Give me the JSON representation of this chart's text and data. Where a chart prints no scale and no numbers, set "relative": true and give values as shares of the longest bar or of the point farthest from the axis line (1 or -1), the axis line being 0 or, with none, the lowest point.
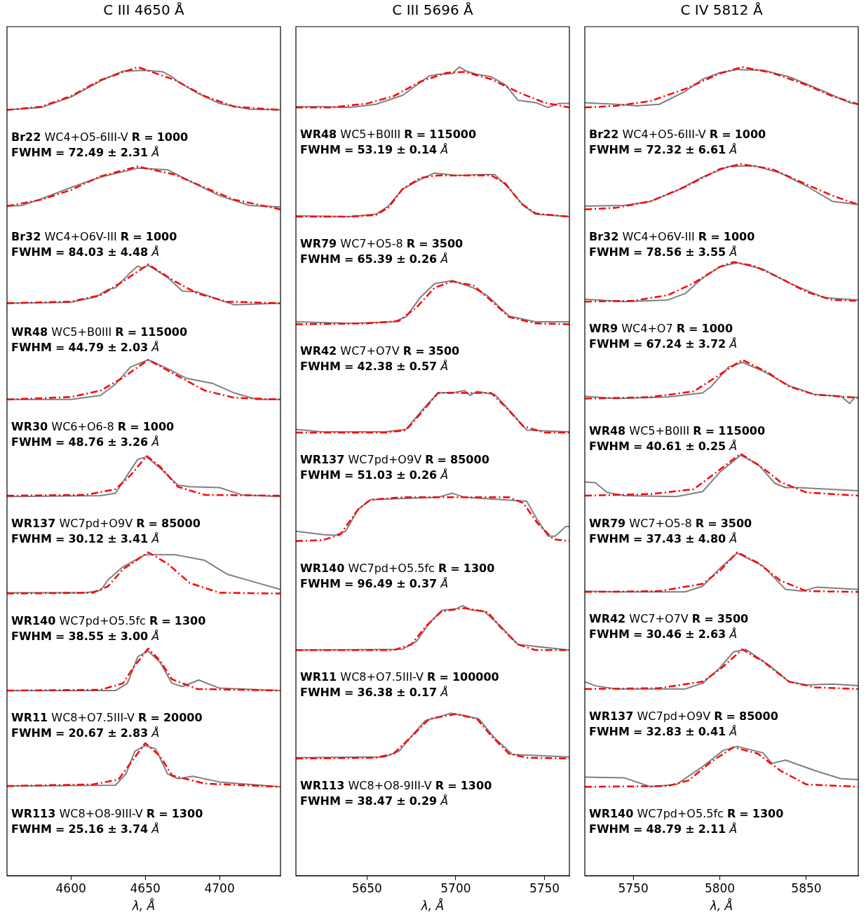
{
  "chart_data": [
    {
      "type": "line",
      "title": "C III 4650 Å",
      "xlabel": "λ, Å",
      "relative": true,
      "xlim": [
        4557,
        4741
      ],
      "xticks": [
        4600,
        4650,
        4700
      ],
      "tick_labels": "x",
      "grid": false,
      "legend": false,
      "marker": "none",
      "series": [
        {
          "color": "#808080",
          "line_style": "solid",
          "x": [
            4557,
            4580,
            4600,
            4620,
            4635,
            4650,
            4662,
            4668,
            4672,
            4685,
            4700,
            4720,
            4741
          ],
          "values": [
            0.947,
            0.95,
            0.963,
            0.983,
            0.995,
            0.996,
            0.994,
            0.988,
            0.982,
            0.968,
            0.955,
            0.948,
            0.947
          ]
        },
        {
          "color": "#ff0000",
          "line_style": "dashed",
          "x": [
            4557,
            4580,
            4600,
            4620,
            4645,
            4670,
            4690,
            4710,
            4741
          ],
          "values": [
            0.947,
            0.951,
            0.964,
            0.984,
            1.0,
            0.984,
            0.964,
            0.951,
            0.947
          ]
        },
        {
          "color": "#808080",
          "line_style": "solid",
          "x": [
            4557,
            4567,
            4580,
            4600,
            4620,
            4645,
            4665,
            4680,
            4700,
            4720,
            4741
          ],
          "values": [
            0.828,
            0.829,
            0.837,
            0.851,
            0.864,
            0.875,
            0.873,
            0.859,
            0.841,
            0.829,
            0.827
          ]
        },
        {
          "color": "#ff0000",
          "line_style": "dashed",
          "x": [
            4557,
            4580,
            4600,
            4620,
            4645,
            4670,
            4690,
            4710,
            4741
          ],
          "values": [
            0.828,
            0.836,
            0.848,
            0.865,
            0.877,
            0.867,
            0.851,
            0.836,
            0.824
          ]
        },
        {
          "color": "#808080",
          "line_style": "solid",
          "x": [
            4557,
            4600,
            4617,
            4625,
            4630,
            4640,
            4645,
            4648,
            4652,
            4665,
            4675,
            4685,
            4700,
            4710,
            4741
          ],
          "values": [
            0.708,
            0.709,
            0.716,
            0.725,
            0.727,
            0.746,
            0.754,
            0.751,
            0.755,
            0.74,
            0.723,
            0.722,
            0.712,
            0.706,
            0.708
          ]
        },
        {
          "color": "#ff0000",
          "line_style": "dashed",
          "x": [
            4557,
            4600,
            4620,
            4635,
            4652,
            4670,
            4685,
            4705,
            4741
          ],
          "values": [
            0.708,
            0.71,
            0.718,
            0.735,
            0.756,
            0.735,
            0.72,
            0.71,
            0.708
          ]
        },
        {
          "color": "#808080",
          "line_style": "solid",
          "x": [
            4557,
            4600,
            4620,
            4630,
            4640,
            4652,
            4665,
            4678,
            4695,
            4710,
            4725,
            4741
          ],
          "values": [
            0.589,
            0.589,
            0.594,
            0.608,
            0.629,
            0.638,
            0.627,
            0.615,
            0.609,
            0.597,
            0.589,
            0.589
          ]
        },
        {
          "color": "#ff0000",
          "line_style": "dashed",
          "x": [
            4557,
            4600,
            4620,
            4635,
            4652,
            4670,
            4690,
            4710,
            4741
          ],
          "values": [
            0.589,
            0.592,
            0.6,
            0.616,
            0.638,
            0.62,
            0.6,
            0.591,
            0.589
          ]
        },
        {
          "color": "#808080",
          "line_style": "solid",
          "x": [
            4557,
            4620,
            4630,
            4636,
            4645,
            4651,
            4660,
            4672,
            4680,
            4700,
            4715,
            4741
          ],
          "values": [
            0.469,
            0.47,
            0.473,
            0.49,
            0.515,
            0.518,
            0.504,
            0.483,
            0.481,
            0.48,
            0.471,
            0.469
          ]
        },
        {
          "color": "#ff0000",
          "line_style": "dashed",
          "x": [
            4557,
            4610,
            4630,
            4640,
            4651,
            4660,
            4672,
            4690,
            4741
          ],
          "values": [
            0.47,
            0.471,
            0.478,
            0.495,
            0.519,
            0.506,
            0.481,
            0.471,
            0.47
          ]
        },
        {
          "color": "#808080",
          "line_style": "solid",
          "x": [
            4557,
            4610,
            4620,
            4625,
            4635,
            4650,
            4670,
            4690,
            4705,
            4720,
            4741
          ],
          "values": [
            0.35,
            0.35,
            0.353,
            0.366,
            0.382,
            0.397,
            0.397,
            0.39,
            0.373,
            0.365,
            0.354
          ]
        },
        {
          "color": "#ff0000",
          "line_style": "dashed",
          "x": [
            4557,
            4615,
            4625,
            4635,
            4652,
            4665,
            4680,
            4700,
            4741
          ],
          "values": [
            0.349,
            0.35,
            0.358,
            0.379,
            0.4,
            0.386,
            0.362,
            0.35,
            0.349
          ]
        },
        {
          "color": "#808080",
          "line_style": "solid",
          "x": [
            4557,
            4630,
            4638,
            4645,
            4652,
            4660,
            4668,
            4675,
            4686,
            4700,
            4741
          ],
          "values": [
            0.229,
            0.229,
            0.238,
            0.271,
            0.278,
            0.264,
            0.238,
            0.234,
            0.242,
            0.232,
            0.229
          ]
        },
        {
          "color": "#ff0000",
          "line_style": "dashed",
          "x": [
            4557,
            4620,
            4635,
            4643,
            4652,
            4660,
            4668,
            4685,
            4741
          ],
          "values": [
            0.229,
            0.23,
            0.238,
            0.26,
            0.281,
            0.266,
            0.243,
            0.231,
            0.229
          ]
        },
        {
          "color": "#808080",
          "line_style": "solid",
          "x": [
            4557,
            4630,
            4637,
            4643,
            4650,
            4657,
            4665,
            4672,
            4682,
            4700,
            4741
          ],
          "values": [
            0.111,
            0.112,
            0.126,
            0.154,
            0.161,
            0.157,
            0.126,
            0.12,
            0.123,
            0.116,
            0.11
          ]
        },
        {
          "color": "#ff0000",
          "line_style": "dashed",
          "x": [
            4557,
            4615,
            4632,
            4640,
            4650,
            4660,
            4668,
            4690,
            4741
          ],
          "values": [
            0.111,
            0.113,
            0.119,
            0.139,
            0.164,
            0.148,
            0.124,
            0.114,
            0.11
          ]
        }
      ],
      "annotations": [
        "Br22 WC4+O5-6III-V R = 1000",
        "FWHM = 72.49 ± 2.31 Å",
        "Br32 WC4+O6V-III R = 1000",
        "FWHM = 84.03 ± 4.48 Å",
        "WR48 WC5+B0III R = 115000",
        "FWHM = 44.79 ± 2.03 Å",
        "WR30 WC6+O6-8 R = 1000",
        "FWHM = 48.76 ± 3.26 Å",
        "WR137 WC7pd+O9V R = 85000",
        "FWHM = 30.12 ± 3.41 Å",
        "WR140 WC7pd+O5.5fc R = 1300",
        "FWHM = 38.55 ± 3.00 Å",
        "WR11 WC8+O7.5III-V R = 20000",
        "FWHM = 20.67 ± 2.83 Å",
        "WR113 WC8+O8-9III-V R = 1300",
        "FWHM = 25.16 ± 3.74 Å"
      ]
    },
    {
      "type": "line",
      "title": "C III 5696 Å",
      "xlabel": "λ, Å",
      "relative": true,
      "xlim": [
        5610,
        5764
      ],
      "xticks": [
        5650,
        5700,
        5750
      ],
      "tick_labels": "x",
      "grid": false,
      "legend": false,
      "marker": "none",
      "series": [
        {
          "color": "#808080",
          "line_style": "solid",
          "x": [
            5610,
            5625,
            5640,
            5655,
            5670,
            5685,
            5690,
            5698,
            5702,
            5706,
            5712,
            5720,
            5728,
            5735,
            5745,
            5752,
            5758,
            5764
          ],
          "values": [
            0.951,
            0.951,
            0.95,
            0.954,
            0.965,
            0.989,
            0.991,
            0.992,
            1.0,
            0.995,
            0.991,
            0.988,
            0.978,
            0.959,
            0.956,
            0.95,
            0.955,
            0.955
          ]
        },
        {
          "color": "#ff0000",
          "line_style": "dashed",
          "x": [
            5610,
            5630,
            5650,
            5665,
            5680,
            5695,
            5705,
            5720,
            5735,
            5750,
            5764
          ],
          "values": [
            0.95,
            0.95,
            0.955,
            0.964,
            0.982,
            0.993,
            0.994,
            0.985,
            0.969,
            0.956,
            0.95
          ]
        },
        {
          "color": "#808080",
          "line_style": "solid",
          "x": [
            5610,
            5640,
            5655,
            5662,
            5670,
            5680,
            5688,
            5700,
            5715,
            5722,
            5730,
            5738,
            5745,
            5764
          ],
          "values": [
            0.816,
            0.815,
            0.818,
            0.828,
            0.849,
            0.861,
            0.869,
            0.866,
            0.867,
            0.867,
            0.85,
            0.829,
            0.818,
            0.815
          ]
        },
        {
          "color": "#ff0000",
          "line_style": "dashed",
          "x": [
            5610,
            5640,
            5655,
            5662,
            5670,
            5680,
            5690,
            5720,
            5728,
            5737,
            5745,
            5764
          ],
          "values": [
            0.815,
            0.815,
            0.817,
            0.826,
            0.849,
            0.863,
            0.866,
            0.866,
            0.856,
            0.831,
            0.819,
            0.815
          ]
        },
        {
          "color": "#808080",
          "line_style": "solid",
          "x": [
            5610,
            5640,
            5665,
            5672,
            5680,
            5688,
            5698,
            5710,
            5718,
            5730,
            5745,
            5764
          ],
          "values": [
            0.685,
            0.683,
            0.685,
            0.691,
            0.715,
            0.732,
            0.736,
            0.727,
            0.717,
            0.692,
            0.685,
            0.685
          ]
        },
        {
          "color": "#ff0000",
          "line_style": "dashed",
          "x": [
            5610,
            5650,
            5668,
            5678,
            5688,
            5698,
            5710,
            5720,
            5730,
            5745,
            5764
          ],
          "values": [
            0.682,
            0.683,
            0.686,
            0.703,
            0.727,
            0.735,
            0.73,
            0.711,
            0.691,
            0.683,
            0.682
          ]
        },
        {
          "color": "#808080",
          "line_style": "solid",
          "x": [
            5610,
            5625,
            5660,
            5672,
            5682,
            5690,
            5700,
            5705,
            5708,
            5712,
            5722,
            5730,
            5740,
            5764
          ],
          "values": [
            0.552,
            0.549,
            0.549,
            0.552,
            0.578,
            0.597,
            0.598,
            0.6,
            0.594,
            0.599,
            0.595,
            0.576,
            0.551,
            0.549
          ]
        },
        {
          "color": "#ff0000",
          "line_style": "dashed",
          "x": [
            5610,
            5660,
            5672,
            5682,
            5690,
            5720,
            5728,
            5738,
            5750,
            5764
          ],
          "values": [
            0.548,
            0.548,
            0.551,
            0.576,
            0.597,
            0.597,
            0.58,
            0.556,
            0.548,
            0.548
          ]
        },
        {
          "color": "#808080",
          "line_style": "solid",
          "x": [
            5610,
            5625,
            5632,
            5638,
            5645,
            5652,
            5690,
            5698,
            5705,
            5740,
            5746,
            5752,
            5756,
            5762,
            5764
          ],
          "values": [
            0.426,
            0.422,
            0.421,
            0.426,
            0.453,
            0.465,
            0.468,
            0.473,
            0.468,
            0.463,
            0.44,
            0.42,
            0.42,
            0.432,
            0.432
          ]
        },
        {
          "color": "#ff0000",
          "line_style": "dashed",
          "x": [
            5610,
            5625,
            5635,
            5645,
            5652,
            5670,
            5730,
            5738,
            5746,
            5755,
            5764
          ],
          "values": [
            0.414,
            0.415,
            0.422,
            0.453,
            0.465,
            0.468,
            0.468,
            0.461,
            0.436,
            0.416,
            0.414
          ]
        },
        {
          "color": "#808080",
          "line_style": "solid",
          "x": [
            5610,
            5670,
            5678,
            5685,
            5692,
            5700,
            5704,
            5708,
            5716,
            5725,
            5735,
            5764
          ],
          "values": [
            0.279,
            0.28,
            0.29,
            0.312,
            0.328,
            0.33,
            0.334,
            0.329,
            0.327,
            0.309,
            0.286,
            0.279
          ]
        },
        {
          "color": "#ff0000",
          "line_style": "dashed",
          "x": [
            5610,
            5665,
            5675,
            5683,
            5692,
            5705,
            5718,
            5725,
            5735,
            5745,
            5764
          ],
          "values": [
            0.279,
            0.279,
            0.286,
            0.308,
            0.327,
            0.331,
            0.326,
            0.308,
            0.286,
            0.279,
            0.279
          ]
        },
        {
          "color": "#808080",
          "line_style": "solid",
          "x": [
            5610,
            5660,
            5668,
            5676,
            5683,
            5690,
            5697,
            5705,
            5713,
            5722,
            5732,
            5764
          ],
          "values": [
            0.146,
            0.147,
            0.154,
            0.175,
            0.192,
            0.196,
            0.201,
            0.198,
            0.194,
            0.17,
            0.15,
            0.147
          ]
        },
        {
          "color": "#ff0000",
          "line_style": "dashed",
          "x": [
            5610,
            5655,
            5665,
            5675,
            5685,
            5700,
            5712,
            5720,
            5730,
            5740,
            5764
          ],
          "values": [
            0.145,
            0.146,
            0.151,
            0.172,
            0.194,
            0.2,
            0.194,
            0.173,
            0.151,
            0.146,
            0.145
          ]
        }
      ],
      "annotations": [
        "WR48 WC5+B0III R = 115000",
        "FWHM = 53.19 ± 0.14 Å",
        "WR79 WC7+O5-8 R = 3500",
        "FWHM = 65.39 ± 0.26 Å",
        "WR42 WC7+O7V R = 3500",
        "FWHM = 42.38 ± 0.57 Å",
        "WR137 WC7pd+O9V R = 85000",
        "FWHM = 51.03 ± 0.26 Å",
        "WR140 WC7pd+O5.5fc R = 1300",
        "FWHM = 96.49 ± 0.37 Å",
        "WR11 WC8+O7.5III-V R = 100000",
        "FWHM = 36.38 ± 0.17 Å",
        "WR113 WC8+O8-9III-V R = 1300",
        "FWHM = 38.47 ± 0.29 Å"
      ]
    },
    {
      "type": "line",
      "title": "C IV 5812 Å",
      "xlabel": "λ, Å",
      "relative": true,
      "xlim": [
        5722,
        5880
      ],
      "xticks": [
        5750,
        5800,
        5850
      ],
      "tick_labels": "x",
      "grid": false,
      "legend": false,
      "marker": "none",
      "series": [
        {
          "color": "#808080",
          "line_style": "solid",
          "x": [
            5722,
            5740,
            5752,
            5765,
            5780,
            5790,
            5800,
            5810,
            5825,
            5840,
            5860,
            5875,
            5880
          ],
          "values": [
            0.956,
            0.954,
            0.952,
            0.954,
            0.97,
            0.985,
            0.993,
            0.997,
            0.996,
            0.988,
            0.97,
            0.956,
            0.954
          ]
        },
        {
          "color": "#ff0000",
          "line_style": "dashed",
          "x": [
            5722,
            5740,
            5760,
            5780,
            5800,
            5813,
            5830,
            5850,
            5865,
            5880
          ],
          "values": [
            0.95,
            0.952,
            0.958,
            0.973,
            0.992,
            1.0,
            0.993,
            0.978,
            0.964,
            0.954
          ]
        },
        {
          "color": "#808080",
          "line_style": "solid",
          "x": [
            5722,
            5745,
            5760,
            5775,
            5790,
            5805,
            5820,
            5835,
            5850,
            5865,
            5880
          ],
          "values": [
            0.828,
            0.829,
            0.834,
            0.847,
            0.864,
            0.877,
            0.878,
            0.869,
            0.853,
            0.834,
            0.83
          ]
        },
        {
          "color": "#ff0000",
          "line_style": "dashed",
          "x": [
            5722,
            5740,
            5760,
            5780,
            5800,
            5812,
            5830,
            5850,
            5865,
            5880
          ],
          "values": [
            0.824,
            0.826,
            0.834,
            0.852,
            0.874,
            0.88,
            0.874,
            0.855,
            0.841,
            0.83
          ]
        },
        {
          "color": "#808080",
          "line_style": "solid",
          "x": [
            5722,
            5745,
            5770,
            5780,
            5790,
            5800,
            5810,
            5825,
            5840,
            5860,
            5880
          ],
          "values": [
            0.713,
            0.71,
            0.712,
            0.72,
            0.739,
            0.753,
            0.758,
            0.75,
            0.733,
            0.715,
            0.712
          ]
        },
        {
          "color": "#ff0000",
          "line_style": "dashed",
          "x": [
            5722,
            5750,
            5770,
            5785,
            5800,
            5808,
            5820,
            5835,
            5850,
            5865,
            5880
          ],
          "values": [
            0.71,
            0.711,
            0.718,
            0.733,
            0.753,
            0.759,
            0.754,
            0.739,
            0.722,
            0.712,
            0.711
          ]
        },
        {
          "color": "#808080",
          "line_style": "solid",
          "x": [
            5722,
            5740,
            5770,
            5790,
            5795,
            5805,
            5813,
            5825,
            5840,
            5855,
            5870,
            5875,
            5878,
            5880
          ],
          "values": [
            0.593,
            0.59,
            0.592,
            0.597,
            0.605,
            0.629,
            0.635,
            0.624,
            0.606,
            0.595,
            0.593,
            0.584,
            0.592,
            0.591
          ]
        },
        {
          "color": "#ff0000",
          "line_style": "dashed",
          "x": [
            5722,
            5760,
            5785,
            5798,
            5813,
            5828,
            5840,
            5855,
            5880
          ],
          "values": [
            0.59,
            0.592,
            0.599,
            0.617,
            0.638,
            0.622,
            0.605,
            0.595,
            0.591
          ]
        },
        {
          "color": "#808080",
          "line_style": "solid",
          "x": [
            5722,
            5728,
            5735,
            5745,
            5775,
            5790,
            5800,
            5812,
            5822,
            5832,
            5838,
            5845,
            5880
          ],
          "values": [
            0.487,
            0.486,
            0.474,
            0.47,
            0.469,
            0.475,
            0.499,
            0.52,
            0.509,
            0.485,
            0.48,
            0.48,
            0.476
          ]
        },
        {
          "color": "#ff0000",
          "line_style": "dashed",
          "x": [
            5722,
            5760,
            5785,
            5798,
            5812,
            5825,
            5835,
            5850,
            5880
          ],
          "values": [
            0.47,
            0.472,
            0.478,
            0.499,
            0.522,
            0.504,
            0.487,
            0.474,
            0.47
          ]
        },
        {
          "color": "#808080",
          "line_style": "solid",
          "x": [
            5722,
            5740,
            5780,
            5790,
            5800,
            5810,
            5825,
            5838,
            5848,
            5856,
            5880
          ],
          "values": [
            0.352,
            0.351,
            0.351,
            0.358,
            0.38,
            0.399,
            0.383,
            0.354,
            0.352,
            0.357,
            0.354
          ]
        },
        {
          "color": "#ff0000",
          "line_style": "dashed",
          "x": [
            5722,
            5765,
            5790,
            5800,
            5810,
            5822,
            5835,
            5850,
            5880
          ],
          "values": [
            0.351,
            0.352,
            0.361,
            0.377,
            0.4,
            0.387,
            0.365,
            0.352,
            0.351
          ]
        },
        {
          "color": "#808080",
          "line_style": "solid",
          "x": [
            5722,
            5728,
            5740,
            5780,
            5790,
            5800,
            5808,
            5815,
            5828,
            5840,
            5850,
            5865,
            5880
          ],
          "values": [
            0.24,
            0.235,
            0.231,
            0.231,
            0.238,
            0.257,
            0.277,
            0.28,
            0.261,
            0.24,
            0.236,
            0.237,
            0.235
          ]
        },
        {
          "color": "#ff0000",
          "line_style": "dashed",
          "x": [
            5722,
            5765,
            5790,
            5800,
            5813,
            5825,
            5840,
            5855,
            5880
          ],
          "values": [
            0.231,
            0.232,
            0.24,
            0.255,
            0.28,
            0.265,
            0.24,
            0.233,
            0.231
          ]
        },
        {
          "color": "#808080",
          "line_style": "solid",
          "x": [
            5722,
            5745,
            5760,
            5775,
            5790,
            5802,
            5810,
            5825,
            5830,
            5838,
            5855,
            5870,
            5880
          ],
          "values": [
            0.122,
            0.121,
            0.11,
            0.113,
            0.135,
            0.155,
            0.16,
            0.152,
            0.139,
            0.143,
            0.13,
            0.12,
            0.119
          ]
        },
        {
          "color": "#ff0000",
          "line_style": "dashed",
          "x": [
            5722,
            5770,
            5782,
            5795,
            5808,
            5822,
            5835,
            5850,
            5880
          ],
          "values": [
            0.11,
            0.111,
            0.118,
            0.141,
            0.159,
            0.151,
            0.13,
            0.113,
            0.11
          ]
        }
      ],
      "annotations": [
        "Br22 WC4+O5-6III-V R = 1000",
        "FWHM = 72.32 ± 6.61 Å",
        "Br32 WC4+O6V-III R = 1000",
        "FWHM = 78.56 ± 3.55 Å",
        "WR9 WC4+O7 R = 1000",
        "FWHM = 67.24 ± 3.72 Å",
        "WR48 WC5+B0III R = 115000",
        "FWHM = 40.61 ± 0.25 Å",
        "WR79 WC7+O5-8 R = 3500",
        "FWHM = 37.43 ± 4.80 Å",
        "WR42 WC7+O7V R = 3500",
        "FWHM = 30.46 ± 2.63 Å",
        "WR137 WC7pd+O9V R = 85000",
        "FWHM = 32.83 ± 0.41 Å",
        "WR140 WC7pd+O5.5fc R = 1300",
        "FWHM = 48.79 ± 2.11 Å"
      ]
    }
  ]
}
